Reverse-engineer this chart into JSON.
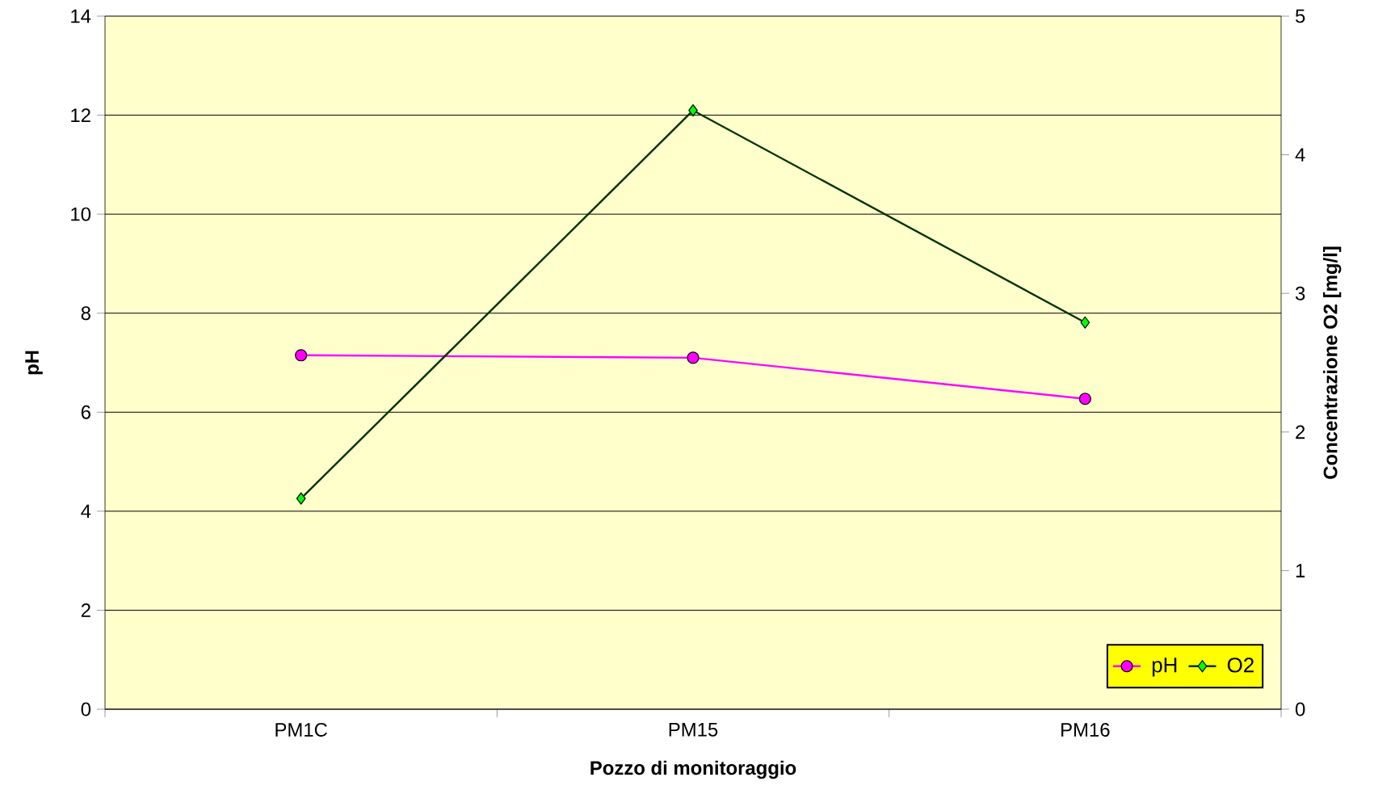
{
  "chart_data": {
    "type": "line",
    "xlabel": "Pozzo di monitoraggio",
    "ylabel": "pH",
    "y2label": "Concentrazione O2 [mg/l]",
    "categories": [
      "PM1C",
      "PM15",
      "PM16"
    ],
    "series": [
      {
        "name": "pH",
        "color": "#ff00ff",
        "values": [
          7.15,
          7.1,
          6.27
        ],
        "marker": "circle"
      },
      {
        "name": "O2",
        "color": "#003300",
        "values": [
          1.52,
          4.32,
          2.79
        ],
        "axis": "y2",
        "marker": "diamond"
      }
    ],
    "ylim": [
      0,
      14
    ],
    "yticks": [
      0,
      2,
      4,
      6,
      8,
      10,
      12,
      14
    ],
    "y2lim": [
      0,
      5
    ],
    "y2ticks": [
      0,
      1,
      2,
      3,
      4,
      5
    ],
    "grid": "y",
    "legend": "bottom right"
  }
}
